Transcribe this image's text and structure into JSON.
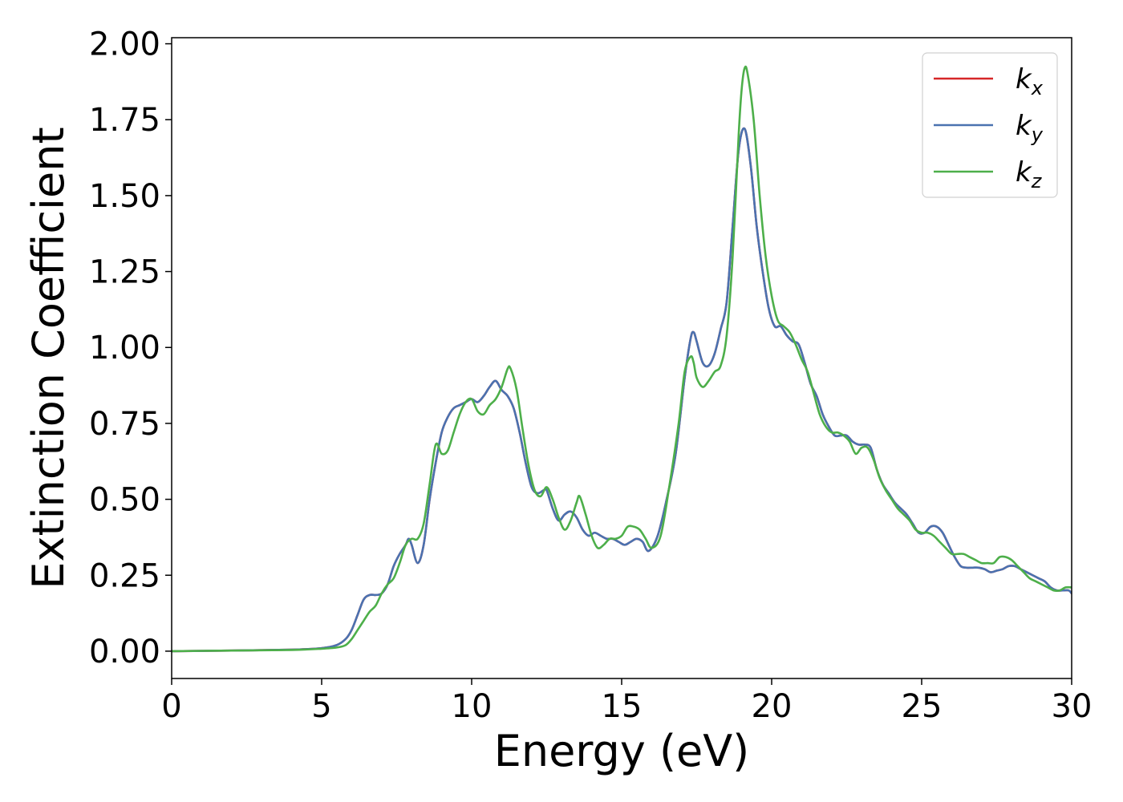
{
  "chart_data": {
    "type": "line",
    "title": "",
    "xlabel": "Energy (eV)",
    "ylabel": "Extinction Coefficient",
    "xlim": [
      0,
      30
    ],
    "ylim": [
      -0.09,
      2.02
    ],
    "xticks": [
      0,
      5,
      10,
      15,
      20,
      25,
      30
    ],
    "xtick_labels": [
      "0",
      "5",
      "10",
      "15",
      "20",
      "25",
      "30"
    ],
    "yticks": [
      0,
      0.25,
      0.5,
      0.75,
      1.0,
      1.25,
      1.5,
      1.75,
      2.0
    ],
    "ytick_labels": [
      "0.00",
      "0.25",
      "0.50",
      "0.75",
      "1.00",
      "1.25",
      "1.50",
      "1.75",
      "2.00"
    ],
    "grid": false,
    "legend_position": "top-right",
    "series": [
      {
        "name": "k",
        "subscript": "x",
        "color": "#d62728",
        "x": [
          0,
          2,
          4,
          5,
          5.5,
          5.8,
          6.0,
          6.2,
          6.4,
          6.6,
          6.8,
          7.0,
          7.2,
          7.4,
          7.6,
          7.8,
          7.9,
          8.0,
          8.2,
          8.4,
          8.6,
          8.8,
          9.0,
          9.2,
          9.4,
          9.6,
          9.8,
          10.0,
          10.2,
          10.4,
          10.6,
          10.8,
          11.0,
          11.2,
          11.4,
          11.6,
          11.8,
          12.0,
          12.2,
          12.4,
          12.5,
          12.7,
          12.9,
          13.1,
          13.3,
          13.5,
          13.7,
          13.9,
          14.1,
          14.3,
          14.5,
          14.7,
          14.9,
          15.1,
          15.3,
          15.5,
          15.7,
          15.9,
          16.2,
          16.5,
          16.8,
          17.1,
          17.3,
          17.4,
          17.5,
          17.7,
          17.9,
          18.1,
          18.3,
          18.5,
          18.7,
          18.9,
          19.1,
          19.3,
          19.5,
          19.7,
          19.9,
          20.1,
          20.3,
          20.5,
          20.7,
          20.9,
          21.1,
          21.3,
          21.5,
          21.7,
          21.9,
          22.1,
          22.3,
          22.5,
          22.7,
          22.9,
          23.1,
          23.3,
          23.5,
          23.7,
          23.9,
          24.1,
          24.3,
          24.5,
          24.7,
          24.9,
          25.1,
          25.3,
          25.5,
          25.7,
          25.9,
          26.1,
          26.3,
          26.5,
          26.7,
          26.9,
          27.1,
          27.3,
          27.5,
          27.7,
          27.9,
          28.1,
          28.3,
          28.5,
          28.7,
          28.9,
          29.1,
          29.3,
          29.5,
          29.7,
          29.9,
          30.0
        ],
        "y": [
          0,
          0.002,
          0.005,
          0.01,
          0.02,
          0.04,
          0.07,
          0.12,
          0.17,
          0.185,
          0.185,
          0.19,
          0.22,
          0.28,
          0.32,
          0.35,
          0.37,
          0.35,
          0.29,
          0.35,
          0.5,
          0.62,
          0.72,
          0.77,
          0.8,
          0.81,
          0.82,
          0.83,
          0.82,
          0.84,
          0.87,
          0.89,
          0.86,
          0.84,
          0.8,
          0.72,
          0.62,
          0.54,
          0.52,
          0.53,
          0.53,
          0.47,
          0.43,
          0.45,
          0.46,
          0.44,
          0.4,
          0.38,
          0.39,
          0.38,
          0.37,
          0.37,
          0.36,
          0.35,
          0.36,
          0.37,
          0.36,
          0.33,
          0.38,
          0.5,
          0.65,
          0.9,
          1.03,
          1.05,
          1.02,
          0.95,
          0.94,
          0.98,
          1.06,
          1.15,
          1.4,
          1.65,
          1.72,
          1.6,
          1.4,
          1.25,
          1.13,
          1.07,
          1.07,
          1.04,
          1.02,
          1.01,
          0.95,
          0.88,
          0.84,
          0.78,
          0.74,
          0.71,
          0.71,
          0.71,
          0.69,
          0.68,
          0.68,
          0.67,
          0.6,
          0.55,
          0.52,
          0.49,
          0.47,
          0.45,
          0.42,
          0.39,
          0.39,
          0.41,
          0.41,
          0.39,
          0.35,
          0.31,
          0.28,
          0.275,
          0.275,
          0.275,
          0.27,
          0.26,
          0.265,
          0.27,
          0.28,
          0.28,
          0.27,
          0.26,
          0.25,
          0.24,
          0.23,
          0.21,
          0.2,
          0.2,
          0.2,
          0.19
        ]
      },
      {
        "name": "k",
        "subscript": "y",
        "color": "#4a72b0",
        "x": [
          0,
          2,
          4,
          5,
          5.5,
          5.8,
          6.0,
          6.2,
          6.4,
          6.6,
          6.8,
          7.0,
          7.2,
          7.4,
          7.6,
          7.8,
          7.9,
          8.0,
          8.2,
          8.4,
          8.6,
          8.8,
          9.0,
          9.2,
          9.4,
          9.6,
          9.8,
          10.0,
          10.2,
          10.4,
          10.6,
          10.8,
          11.0,
          11.2,
          11.4,
          11.6,
          11.8,
          12.0,
          12.2,
          12.4,
          12.5,
          12.7,
          12.9,
          13.1,
          13.3,
          13.5,
          13.7,
          13.9,
          14.1,
          14.3,
          14.5,
          14.7,
          14.9,
          15.1,
          15.3,
          15.5,
          15.7,
          15.9,
          16.2,
          16.5,
          16.8,
          17.1,
          17.3,
          17.4,
          17.5,
          17.7,
          17.9,
          18.1,
          18.3,
          18.5,
          18.7,
          18.9,
          19.1,
          19.3,
          19.5,
          19.7,
          19.9,
          20.1,
          20.3,
          20.5,
          20.7,
          20.9,
          21.1,
          21.3,
          21.5,
          21.7,
          21.9,
          22.1,
          22.3,
          22.5,
          22.7,
          22.9,
          23.1,
          23.3,
          23.5,
          23.7,
          23.9,
          24.1,
          24.3,
          24.5,
          24.7,
          24.9,
          25.1,
          25.3,
          25.5,
          25.7,
          25.9,
          26.1,
          26.3,
          26.5,
          26.7,
          26.9,
          27.1,
          27.3,
          27.5,
          27.7,
          27.9,
          28.1,
          28.3,
          28.5,
          28.7,
          28.9,
          29.1,
          29.3,
          29.5,
          29.7,
          29.9,
          30.0
        ],
        "y": [
          0,
          0.002,
          0.005,
          0.01,
          0.02,
          0.04,
          0.07,
          0.12,
          0.17,
          0.185,
          0.185,
          0.19,
          0.22,
          0.28,
          0.32,
          0.35,
          0.37,
          0.35,
          0.29,
          0.35,
          0.5,
          0.62,
          0.72,
          0.77,
          0.8,
          0.81,
          0.82,
          0.83,
          0.82,
          0.84,
          0.87,
          0.89,
          0.86,
          0.84,
          0.8,
          0.72,
          0.62,
          0.54,
          0.52,
          0.53,
          0.53,
          0.47,
          0.43,
          0.45,
          0.46,
          0.44,
          0.4,
          0.38,
          0.39,
          0.38,
          0.37,
          0.37,
          0.36,
          0.35,
          0.36,
          0.37,
          0.36,
          0.33,
          0.38,
          0.5,
          0.65,
          0.9,
          1.03,
          1.05,
          1.02,
          0.95,
          0.94,
          0.98,
          1.06,
          1.15,
          1.4,
          1.65,
          1.72,
          1.6,
          1.4,
          1.25,
          1.13,
          1.07,
          1.07,
          1.04,
          1.02,
          1.01,
          0.95,
          0.88,
          0.84,
          0.78,
          0.74,
          0.71,
          0.71,
          0.71,
          0.69,
          0.68,
          0.68,
          0.67,
          0.6,
          0.55,
          0.52,
          0.49,
          0.47,
          0.45,
          0.42,
          0.39,
          0.39,
          0.41,
          0.41,
          0.39,
          0.35,
          0.31,
          0.28,
          0.275,
          0.275,
          0.275,
          0.27,
          0.26,
          0.265,
          0.27,
          0.28,
          0.28,
          0.27,
          0.26,
          0.25,
          0.24,
          0.23,
          0.21,
          0.2,
          0.2,
          0.2,
          0.19
        ]
      },
      {
        "name": "k",
        "subscript": "z",
        "color": "#4daf4a",
        "x": [
          0,
          2,
          4,
          5,
          5.5,
          5.8,
          6.0,
          6.2,
          6.4,
          6.6,
          6.8,
          7.0,
          7.2,
          7.4,
          7.6,
          7.8,
          8.0,
          8.2,
          8.4,
          8.6,
          8.8,
          9.0,
          9.2,
          9.4,
          9.6,
          9.8,
          10.0,
          10.2,
          10.4,
          10.6,
          10.8,
          11.0,
          11.2,
          11.3,
          11.5,
          11.7,
          11.9,
          12.1,
          12.3,
          12.5,
          12.7,
          12.9,
          13.1,
          13.3,
          13.5,
          13.6,
          13.8,
          14.0,
          14.2,
          14.4,
          14.6,
          14.8,
          15.0,
          15.2,
          15.4,
          15.6,
          15.8,
          16.0,
          16.3,
          16.6,
          16.9,
          17.1,
          17.3,
          17.4,
          17.5,
          17.7,
          17.9,
          18.1,
          18.3,
          18.5,
          18.7,
          18.9,
          19.0,
          19.1,
          19.2,
          19.4,
          19.6,
          19.8,
          20.0,
          20.2,
          20.4,
          20.6,
          20.8,
          21.0,
          21.2,
          21.4,
          21.6,
          21.8,
          22.0,
          22.2,
          22.4,
          22.6,
          22.8,
          23.0,
          23.2,
          23.4,
          23.6,
          23.8,
          24.0,
          24.2,
          24.4,
          24.6,
          24.8,
          25.0,
          25.2,
          25.4,
          25.6,
          25.8,
          26.0,
          26.2,
          26.4,
          26.6,
          26.8,
          27.0,
          27.2,
          27.4,
          27.6,
          27.8,
          28.0,
          28.2,
          28.4,
          28.6,
          28.8,
          29.0,
          29.2,
          29.4,
          29.6,
          29.8,
          30.0
        ],
        "y": [
          0,
          0.002,
          0.004,
          0.008,
          0.012,
          0.02,
          0.04,
          0.07,
          0.1,
          0.13,
          0.15,
          0.19,
          0.22,
          0.24,
          0.29,
          0.35,
          0.37,
          0.37,
          0.42,
          0.55,
          0.68,
          0.65,
          0.66,
          0.72,
          0.78,
          0.82,
          0.83,
          0.79,
          0.78,
          0.81,
          0.83,
          0.87,
          0.93,
          0.93,
          0.86,
          0.73,
          0.61,
          0.53,
          0.51,
          0.54,
          0.5,
          0.44,
          0.4,
          0.43,
          0.49,
          0.51,
          0.45,
          0.38,
          0.34,
          0.35,
          0.37,
          0.37,
          0.38,
          0.41,
          0.41,
          0.4,
          0.37,
          0.34,
          0.38,
          0.55,
          0.75,
          0.92,
          0.97,
          0.95,
          0.9,
          0.87,
          0.89,
          0.92,
          0.94,
          1.04,
          1.3,
          1.7,
          1.85,
          1.92,
          1.9,
          1.75,
          1.5,
          1.3,
          1.17,
          1.09,
          1.07,
          1.05,
          1.01,
          0.96,
          0.92,
          0.85,
          0.78,
          0.74,
          0.72,
          0.72,
          0.71,
          0.69,
          0.65,
          0.67,
          0.67,
          0.63,
          0.57,
          0.53,
          0.5,
          0.47,
          0.45,
          0.43,
          0.4,
          0.39,
          0.39,
          0.38,
          0.36,
          0.34,
          0.32,
          0.32,
          0.32,
          0.31,
          0.3,
          0.29,
          0.29,
          0.29,
          0.31,
          0.31,
          0.3,
          0.28,
          0.26,
          0.24,
          0.23,
          0.22,
          0.21,
          0.2,
          0.2,
          0.21,
          0.21
        ]
      }
    ]
  }
}
